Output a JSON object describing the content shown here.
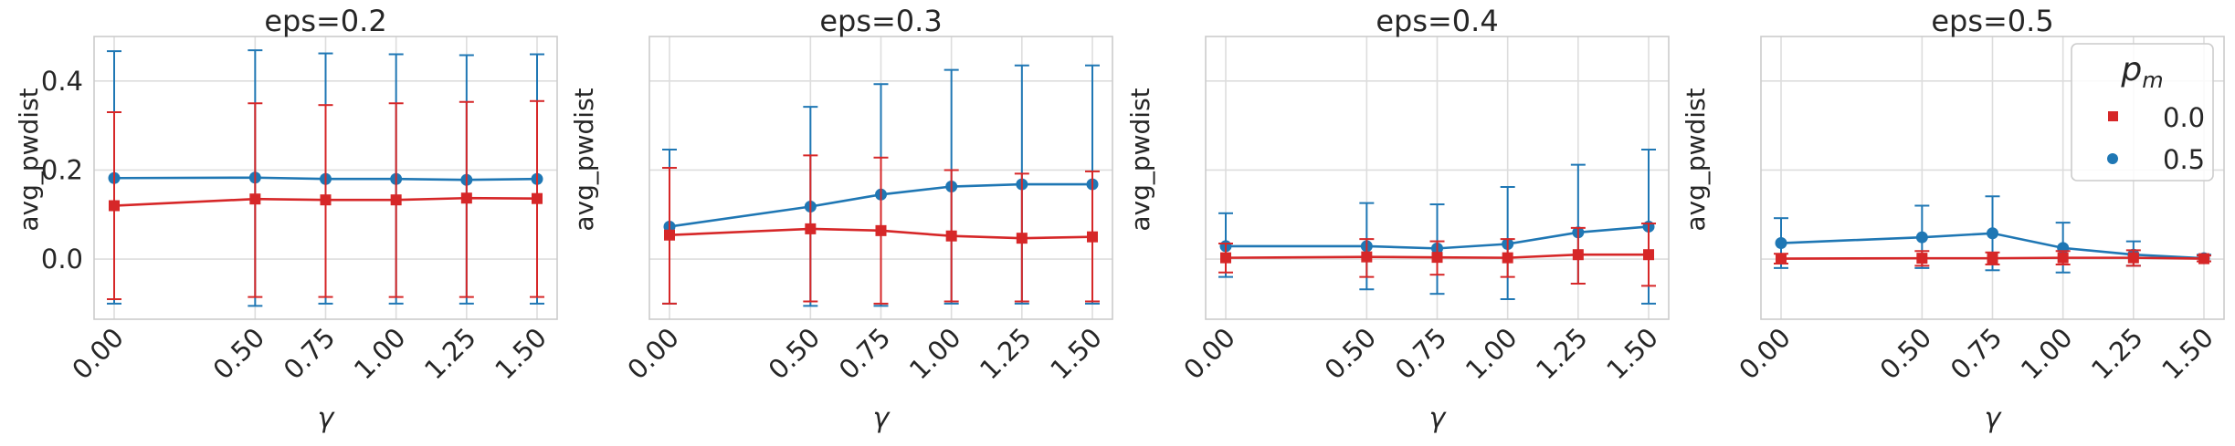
{
  "chart_data": {
    "type": "line",
    "ylabel": "avg_pwdist",
    "xlabel": "γ",
    "x": [
      0.0,
      0.5,
      0.75,
      1.0,
      1.25,
      1.5
    ],
    "xticklabels": [
      "0.00",
      "0.50",
      "0.75",
      "1.00",
      "1.25",
      "1.50"
    ],
    "ylim": [
      -0.135,
      0.5
    ],
    "yticks": [
      0.0,
      0.2,
      0.4
    ],
    "yticklabels": [
      "0.0",
      "0.2",
      "0.4"
    ],
    "grid": true,
    "colors": {
      "0.0": "#d62728",
      "0.5": "#1f77b4"
    },
    "legend": {
      "title_base": "p",
      "title_sub": "m",
      "placement": "top-right",
      "entries": [
        {
          "label": "0.0",
          "marker": "square",
          "color": "#d62728"
        },
        {
          "label": "0.5",
          "marker": "circle",
          "color": "#1f77b4"
        }
      ]
    },
    "panels": [
      {
        "title": "eps=0.2",
        "show_yticklabels": true,
        "series": [
          {
            "name": "0.5",
            "values": [
              0.182,
              0.183,
              0.18,
              0.18,
              0.178,
              0.18
            ],
            "err_low": [
              -0.1,
              -0.105,
              -0.1,
              -0.1,
              -0.1,
              -0.1
            ],
            "err_high": [
              0.467,
              0.469,
              0.462,
              0.46,
              0.458,
              0.46
            ]
          },
          {
            "name": "0.0",
            "values": [
              0.12,
              0.135,
              0.133,
              0.133,
              0.137,
              0.136
            ],
            "err_low": [
              -0.09,
              -0.085,
              -0.085,
              -0.085,
              -0.085,
              -0.085
            ],
            "err_high": [
              0.33,
              0.35,
              0.346,
              0.35,
              0.353,
              0.355
            ]
          }
        ]
      },
      {
        "title": "eps=0.3",
        "show_yticklabels": false,
        "series": [
          {
            "name": "0.5",
            "values": [
              0.073,
              0.118,
              0.145,
              0.163,
              0.168,
              0.168
            ],
            "err_low": [
              -0.1,
              -0.105,
              -0.105,
              -0.1,
              -0.1,
              -0.1
            ],
            "err_high": [
              0.246,
              0.342,
              0.393,
              0.425,
              0.435,
              0.435
            ]
          },
          {
            "name": "0.0",
            "values": [
              0.054,
              0.068,
              0.064,
              0.052,
              0.047,
              0.05
            ],
            "err_low": [
              -0.1,
              -0.095,
              -0.1,
              -0.095,
              -0.095,
              -0.095
            ],
            "err_high": [
              0.205,
              0.233,
              0.228,
              0.2,
              0.192,
              0.197
            ]
          }
        ]
      },
      {
        "title": "eps=0.4",
        "show_yticklabels": false,
        "series": [
          {
            "name": "0.5",
            "values": [
              0.029,
              0.029,
              0.024,
              0.034,
              0.06,
              0.073
            ],
            "err_low": [
              -0.04,
              -0.068,
              -0.078,
              -0.09,
              -0.055,
              -0.1
            ],
            "err_high": [
              0.103,
              0.126,
              0.123,
              0.162,
              0.212,
              0.246
            ]
          },
          {
            "name": "0.0",
            "values": [
              0.003,
              0.005,
              0.004,
              0.003,
              0.01,
              0.01
            ],
            "err_low": [
              -0.03,
              -0.04,
              -0.035,
              -0.04,
              -0.055,
              -0.06
            ],
            "err_high": [
              0.035,
              0.045,
              0.04,
              0.045,
              0.07,
              0.08
            ]
          }
        ]
      },
      {
        "title": "eps=0.5",
        "show_yticklabels": false,
        "series": [
          {
            "name": "0.5",
            "values": [
              0.036,
              0.049,
              0.058,
              0.025,
              0.01,
              0.002
            ],
            "err_low": [
              -0.02,
              -0.02,
              -0.025,
              -0.03,
              -0.015,
              -0.005
            ],
            "err_high": [
              0.092,
              0.12,
              0.141,
              0.082,
              0.04,
              0.01
            ]
          },
          {
            "name": "0.0",
            "values": [
              0.001,
              0.002,
              0.002,
              0.003,
              0.003,
              0.001
            ],
            "err_low": [
              -0.01,
              -0.015,
              -0.012,
              -0.012,
              -0.015,
              -0.005
            ],
            "err_high": [
              0.012,
              0.018,
              0.015,
              0.018,
              0.02,
              0.008
            ]
          }
        ]
      }
    ]
  }
}
